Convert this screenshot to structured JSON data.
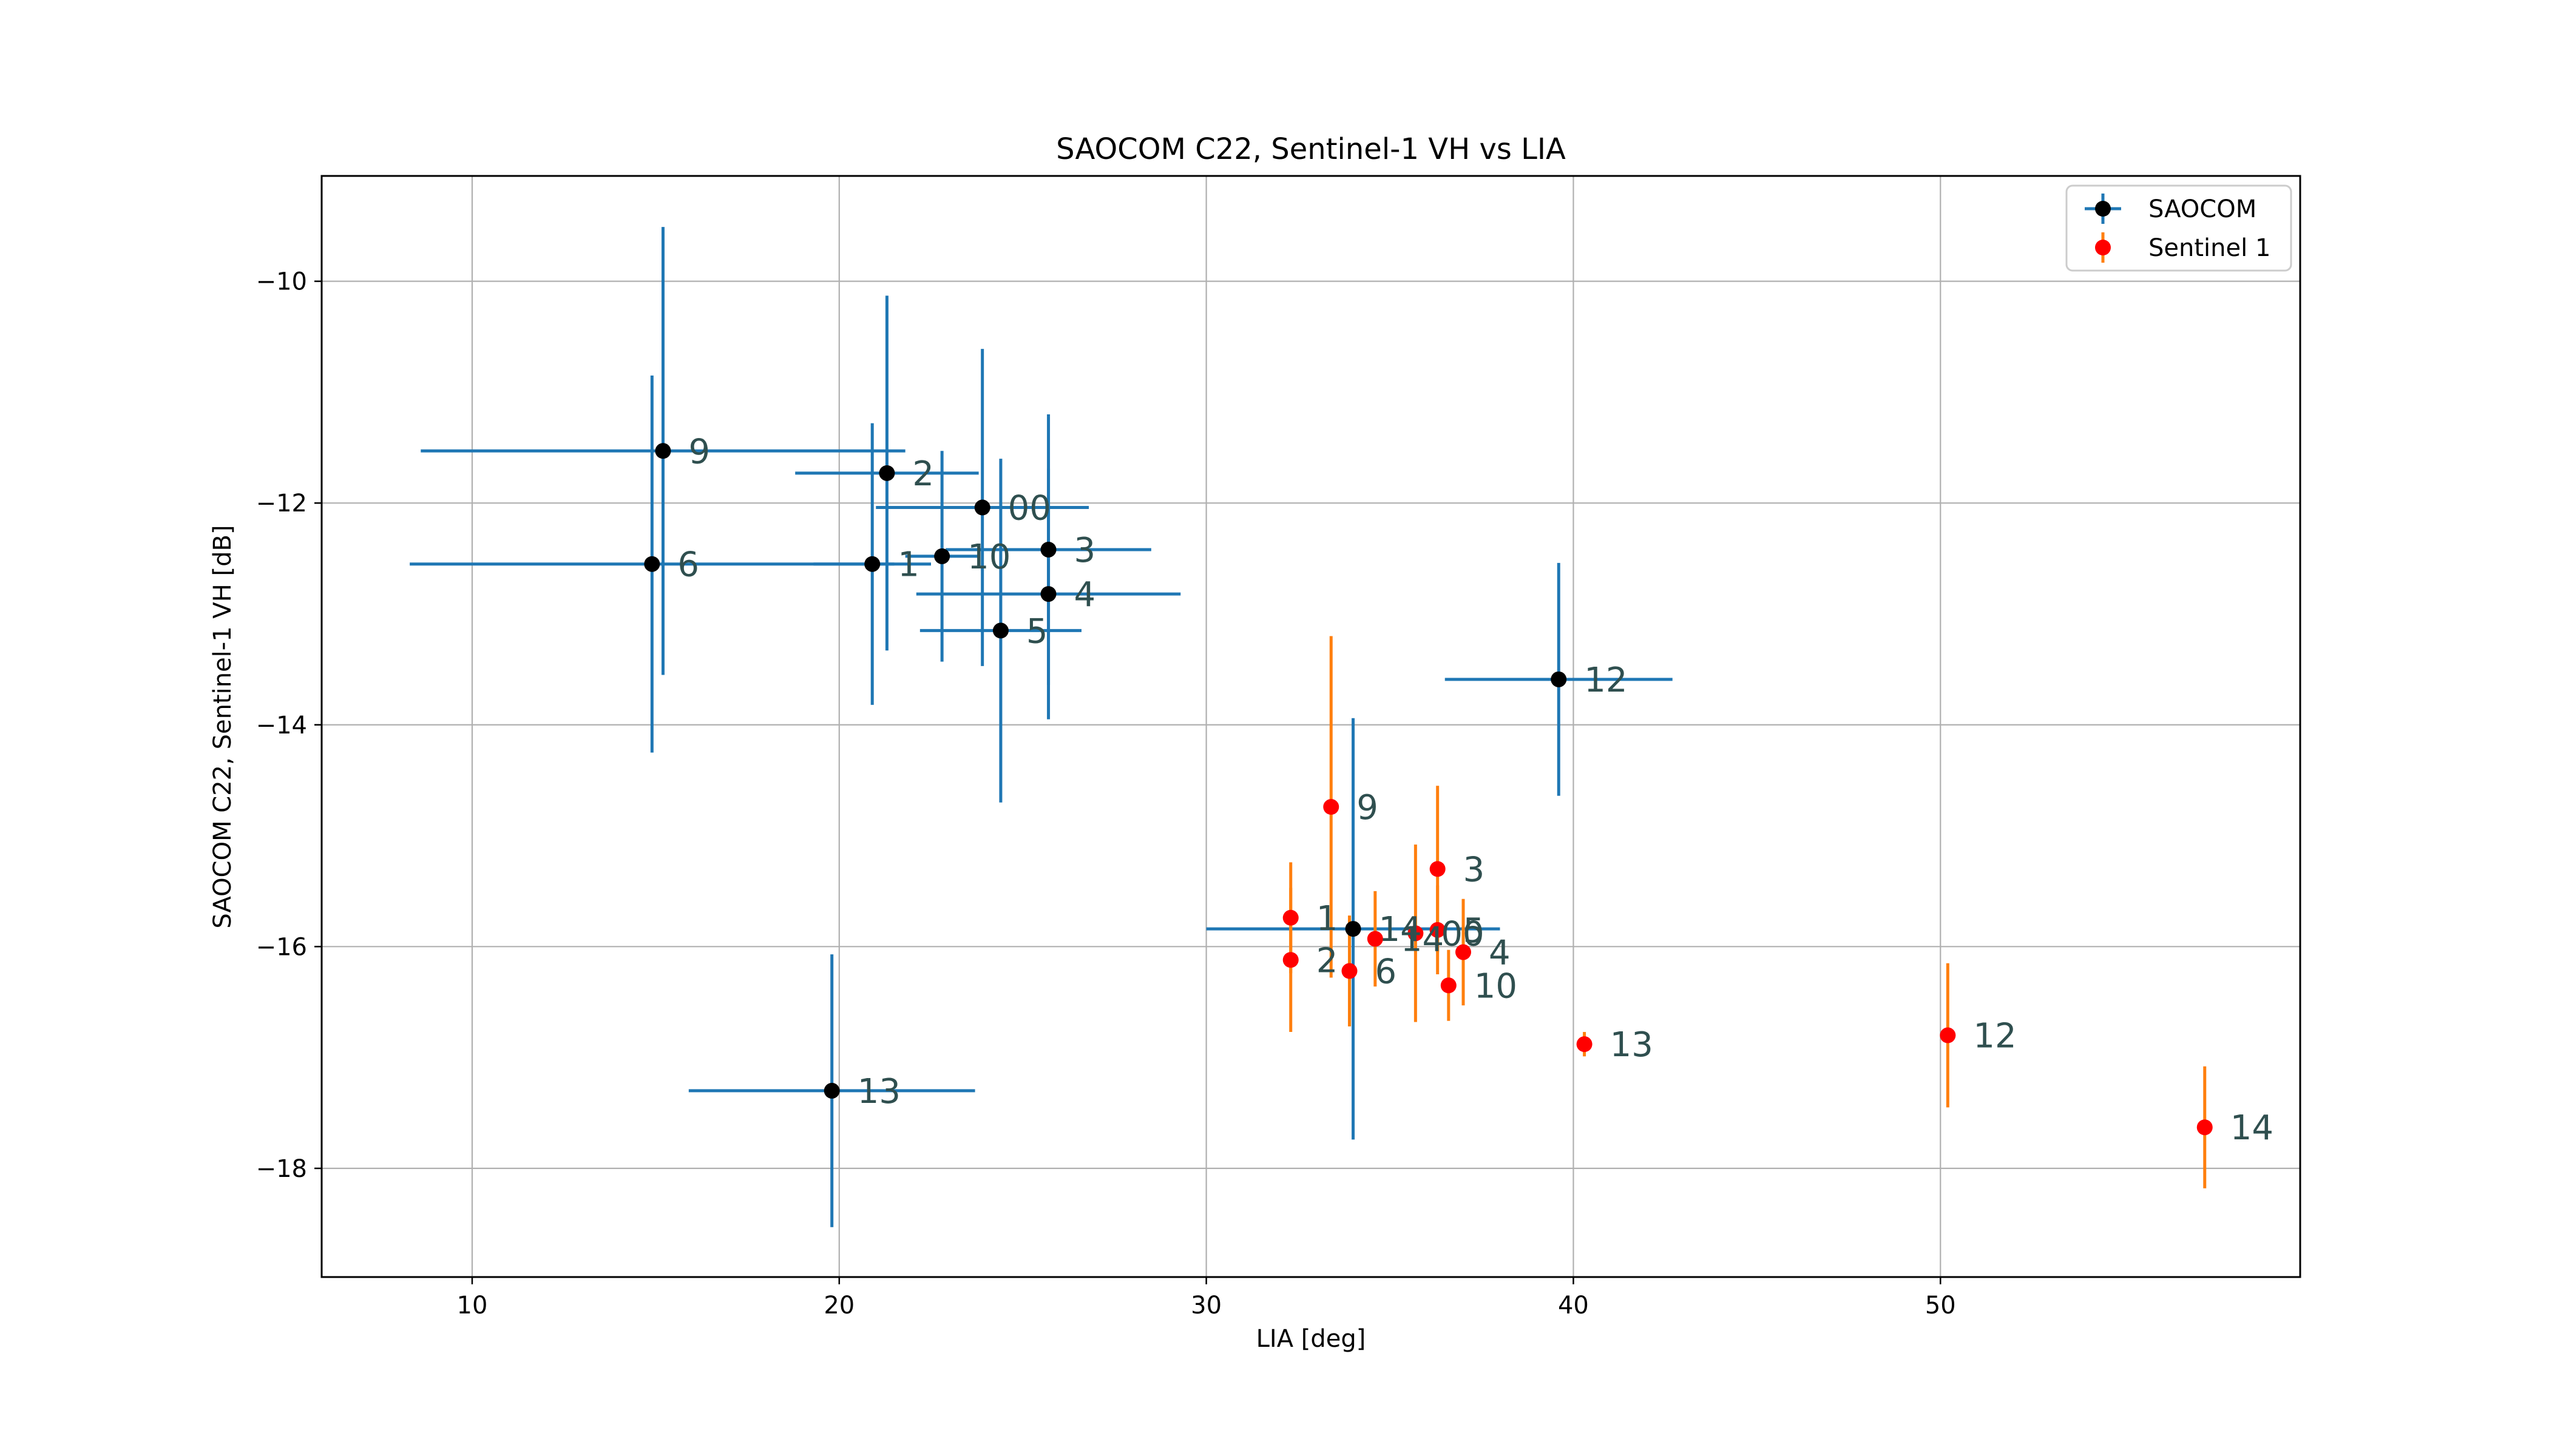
{
  "chart_data": {
    "type": "scatter",
    "title": "SAOCOM C22, Sentinel-1 VH vs LIA",
    "xlabel": "LIA [deg]",
    "ylabel": "SAOCOM C22, Sentinel-1 VH [dB]",
    "xlim": [
      5.9,
      59.8
    ],
    "ylim": [
      -18.98,
      -9.05
    ],
    "xticks": [
      10,
      20,
      30,
      40,
      50
    ],
    "yticks": [
      -10,
      -12,
      -14,
      -16,
      -18
    ],
    "grid": true,
    "legend": "top-right",
    "series": [
      {
        "name": "SAOCOM",
        "marker_color": "#000000",
        "error_color": "#1f77b4",
        "points": [
          {
            "label": "9",
            "x": 15.2,
            "y": -11.53,
            "xerr": 6.6,
            "yerr": 2.02
          },
          {
            "label": "6",
            "x": 14.9,
            "y": -12.55,
            "xerr": 6.6,
            "yerr": 1.7
          },
          {
            "label": "2",
            "x": 21.3,
            "y": -11.73,
            "xerr": 2.5,
            "yerr": 1.6
          },
          {
            "label": "00",
            "x": 23.9,
            "y": -12.04,
            "xerr": 2.9,
            "yerr": 1.43
          },
          {
            "label": "1",
            "x": 20.9,
            "y": -12.55,
            "xerr": 1.6,
            "yerr": 1.27
          },
          {
            "label": "10",
            "x": 22.8,
            "y": -12.48,
            "xerr": 1.0,
            "yerr": 0.95
          },
          {
            "label": "3",
            "x": 25.7,
            "y": -12.42,
            "xerr": 2.8,
            "yerr": 1.22
          },
          {
            "label": "4",
            "x": 25.7,
            "y": -12.82,
            "xerr": 3.6,
            "yerr": 1.13
          },
          {
            "label": "5",
            "x": 24.4,
            "y": -13.15,
            "xerr": 2.2,
            "yerr": 1.55
          },
          {
            "label": "12",
            "x": 39.6,
            "y": -13.59,
            "xerr": 3.1,
            "yerr": 1.05
          },
          {
            "label": "14",
            "x": 34.0,
            "y": -15.84,
            "xerr": 4.0,
            "yerr": 1.9
          },
          {
            "label": "13",
            "x": 19.8,
            "y": -17.3,
            "xerr": 3.9,
            "yerr": 1.23
          }
        ]
      },
      {
        "name": "Sentinel 1",
        "marker_color": "#ff0000",
        "error_color": "#ff7f0e",
        "points": [
          {
            "label": "9",
            "x": 33.4,
            "y": -14.74,
            "xerr": 0,
            "yerr": 1.54
          },
          {
            "label": "3",
            "x": 36.3,
            "y": -15.3,
            "xerr": 0,
            "yerr": 0.75
          },
          {
            "label": "1",
            "x": 32.3,
            "y": -15.74,
            "xerr": 0,
            "yerr": 0.5
          },
          {
            "label": "2",
            "x": 32.3,
            "y": -16.12,
            "xerr": 0,
            "yerr": 0.65
          },
          {
            "label": "14",
            "x": 34.6,
            "y": -15.93,
            "xerr": 0,
            "yerr": 0.43
          },
          {
            "label": "00",
            "x": 35.7,
            "y": -15.88,
            "xerr": 0,
            "yerr": 0.8
          },
          {
            "label": "5",
            "x": 36.3,
            "y": -15.85,
            "xerr": 0,
            "yerr": 0.4
          },
          {
            "label": "4",
            "x": 37.0,
            "y": -16.05,
            "xerr": 0,
            "yerr": 0.48
          },
          {
            "label": "6",
            "x": 33.9,
            "y": -16.22,
            "xerr": 0,
            "yerr": 0.5
          },
          {
            "label": "10",
            "x": 36.6,
            "y": -16.35,
            "xerr": 0,
            "yerr": 0.32
          },
          {
            "label": "13",
            "x": 40.3,
            "y": -16.88,
            "xerr": 0,
            "yerr": 0.11
          },
          {
            "label": "12",
            "x": 50.2,
            "y": -16.8,
            "xerr": 0,
            "yerr": 0.65
          },
          {
            "label": "14",
            "x": 57.2,
            "y": -17.63,
            "xerr": 0,
            "yerr": 0.55
          }
        ]
      }
    ]
  },
  "colors": {
    "saocom_marker": "#000000",
    "saocom_error": "#1f77b4",
    "sentinel_marker": "#ff0000",
    "sentinel_error": "#ff7f0e",
    "label_text": "#2f4f4f",
    "grid": "#b0b0b0"
  }
}
